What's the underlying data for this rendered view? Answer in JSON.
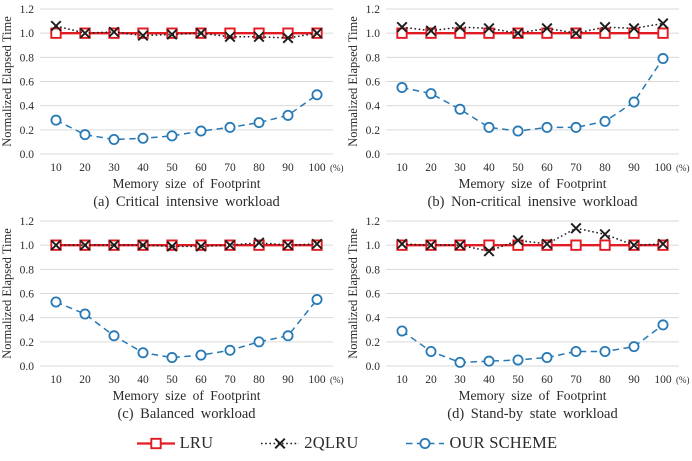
{
  "colors": {
    "background": "#ffffff",
    "grid": "#dadada",
    "text": "#2b2b2b",
    "lru_red": "#e21b23",
    "qlru_black": "#1c1c1c",
    "scheme_blue": "#2779b5"
  },
  "legend": {
    "items": [
      {
        "label": "LRU",
        "color": "#e21b23",
        "marker": "square",
        "line": "solid",
        "icon": "lru-square-line-icon"
      },
      {
        "label": "2QLRU",
        "color": "#1c1c1c",
        "marker": "x",
        "line": "dotted",
        "icon": "2qlru-x-line-icon"
      },
      {
        "label": "OUR SCHEME",
        "color": "#2779b5",
        "marker": "circle",
        "line": "dashed",
        "icon": "our-scheme-circle-line-icon"
      }
    ]
  },
  "chart_data": [
    {
      "type": "line",
      "title": "(a) Critical intensive workload",
      "xlabel": "Memory size of Footprint",
      "ylabel": "Normalized Elapsed Time",
      "x_suffix": "(%)",
      "categories": [
        10,
        20,
        30,
        40,
        50,
        60,
        70,
        80,
        90,
        100
      ],
      "ylim": [
        0,
        1.2
      ],
      "yticks": [
        0,
        0.2,
        0.4,
        0.6,
        0.8,
        1.0,
        1.2
      ],
      "grid": true,
      "legend_position": "shared-bottom",
      "series": [
        {
          "name": "LRU",
          "values": [
            1.0,
            1.0,
            1.0,
            1.0,
            1.0,
            1.0,
            1.0,
            1.0,
            1.0,
            1.0
          ]
        },
        {
          "name": "2QLRU",
          "values": [
            1.06,
            1.0,
            1.01,
            0.98,
            0.99,
            1.0,
            0.97,
            0.97,
            0.96,
            1.0
          ]
        },
        {
          "name": "OUR SCHEME",
          "values": [
            0.28,
            0.16,
            0.12,
            0.13,
            0.15,
            0.19,
            0.22,
            0.26,
            0.32,
            0.49
          ]
        }
      ]
    },
    {
      "type": "line",
      "title": "(b) Non-critical inensive workload",
      "xlabel": "Memory size of Footprint",
      "ylabel": "Normalized Elapsed Time",
      "x_suffix": "(%)",
      "categories": [
        10,
        20,
        30,
        40,
        50,
        60,
        70,
        80,
        90,
        100
      ],
      "ylim": [
        0,
        1.2
      ],
      "yticks": [
        0,
        0.2,
        0.4,
        0.6,
        0.8,
        1.0,
        1.2
      ],
      "grid": true,
      "legend_position": "shared-bottom",
      "series": [
        {
          "name": "LRU",
          "values": [
            1.0,
            1.0,
            1.0,
            1.0,
            1.0,
            1.0,
            1.0,
            1.0,
            1.0,
            1.0
          ]
        },
        {
          "name": "2QLRU",
          "values": [
            1.05,
            1.02,
            1.05,
            1.04,
            1.0,
            1.04,
            1.0,
            1.05,
            1.04,
            1.08
          ]
        },
        {
          "name": "OUR SCHEME",
          "values": [
            0.55,
            0.5,
            0.37,
            0.22,
            0.19,
            0.22,
            0.22,
            0.27,
            0.43,
            0.79
          ]
        }
      ]
    },
    {
      "type": "line",
      "title": "(c) Balanced workload",
      "xlabel": "Memory size of Footprint",
      "ylabel": "Normalized Elapsed Time",
      "x_suffix": "(%)",
      "categories": [
        10,
        20,
        30,
        40,
        50,
        60,
        70,
        80,
        90,
        100
      ],
      "ylim": [
        0,
        1.2
      ],
      "yticks": [
        0,
        0.2,
        0.4,
        0.6,
        0.8,
        1.0,
        1.2
      ],
      "grid": true,
      "legend_position": "shared-bottom",
      "series": [
        {
          "name": "LRU",
          "values": [
            1.0,
            1.0,
            1.0,
            1.0,
            1.0,
            1.0,
            1.0,
            1.0,
            1.0,
            1.0
          ]
        },
        {
          "name": "2QLRU",
          "values": [
            1.0,
            1.0,
            1.0,
            1.0,
            0.99,
            0.99,
            1.0,
            1.02,
            1.0,
            1.01
          ]
        },
        {
          "name": "OUR SCHEME",
          "values": [
            0.53,
            0.43,
            0.25,
            0.11,
            0.07,
            0.09,
            0.13,
            0.2,
            0.25,
            0.55
          ]
        }
      ]
    },
    {
      "type": "line",
      "title": "(d) Stand-by state workload",
      "xlabel": "Memory size of Footprint",
      "ylabel": "Normalized Elapsed Time",
      "x_suffix": "(%)",
      "categories": [
        10,
        20,
        30,
        40,
        50,
        60,
        70,
        80,
        90,
        100
      ],
      "ylim": [
        0,
        1.2
      ],
      "yticks": [
        0,
        0.2,
        0.4,
        0.6,
        0.8,
        1.0,
        1.2
      ],
      "grid": true,
      "legend_position": "shared-bottom",
      "series": [
        {
          "name": "LRU",
          "values": [
            1.0,
            1.0,
            1.0,
            1.0,
            1.0,
            1.0,
            1.0,
            1.0,
            1.0,
            1.0
          ]
        },
        {
          "name": "2QLRU",
          "values": [
            1.01,
            1.0,
            1.0,
            0.95,
            1.04,
            1.01,
            1.14,
            1.09,
            1.0,
            1.01
          ]
        },
        {
          "name": "OUR SCHEME",
          "values": [
            0.29,
            0.12,
            0.03,
            0.04,
            0.05,
            0.07,
            0.12,
            0.12,
            0.16,
            0.34
          ]
        }
      ]
    }
  ]
}
